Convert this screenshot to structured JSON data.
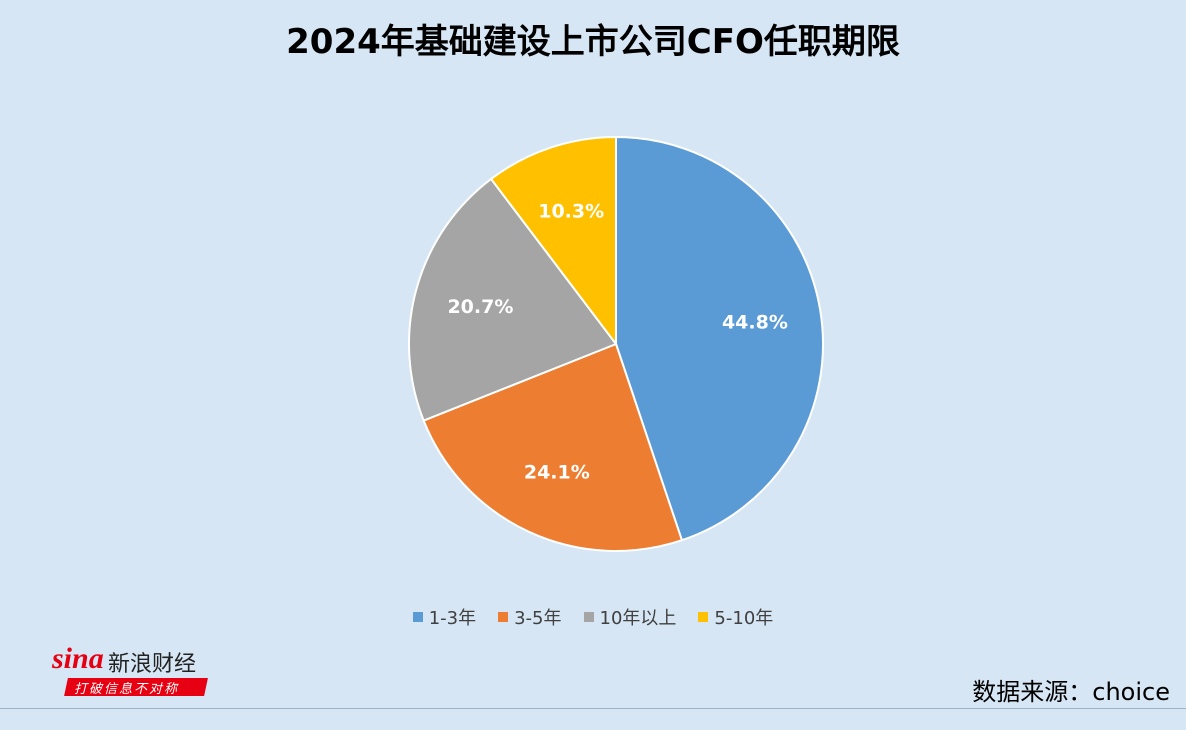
{
  "chart_data": {
    "type": "pie",
    "title": "2024年基础建设上市公司CFO任职期限",
    "categories": [
      "1-3年",
      "3-5年",
      "10年以上",
      "5-10年"
    ],
    "values": [
      44.8,
      24.1,
      20.7,
      10.3
    ],
    "value_labels": [
      "44.8%",
      "24.1%",
      "20.7%",
      "10.3%"
    ],
    "colors": [
      "#5b9bd5",
      "#ed7d31",
      "#a5a5a5",
      "#ffc000"
    ],
    "legend_position": "bottom"
  },
  "source": "数据来源：choice",
  "logo": {
    "brand": "sina",
    "name": "新浪财经",
    "slogan": "打破信息不对称"
  }
}
